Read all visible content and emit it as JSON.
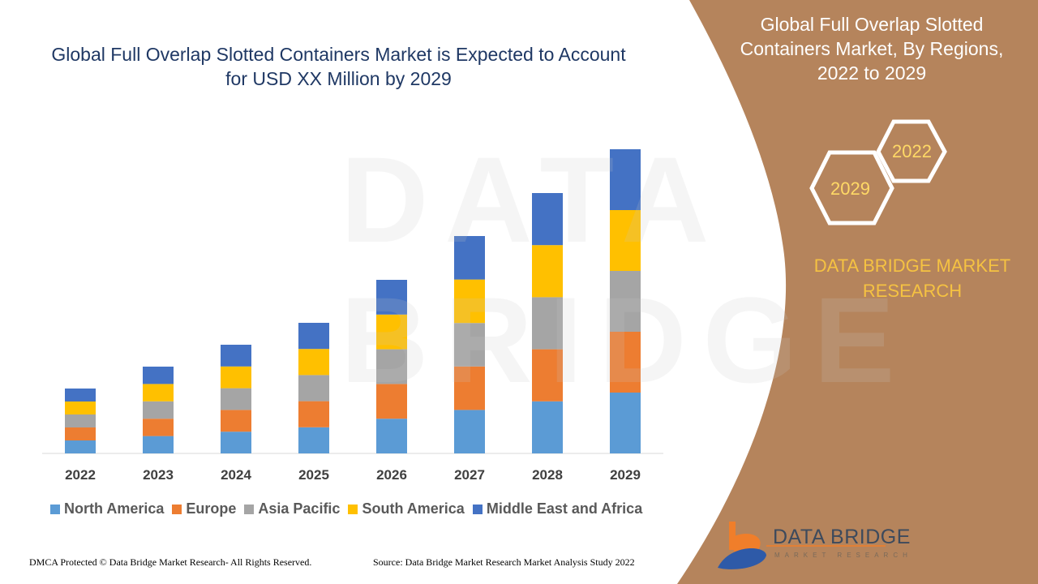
{
  "header": {
    "title": "Global Full Overlap Slotted Containers Market is Expected to Account for USD XX Million by 2029"
  },
  "side_panel": {
    "title": "Global Full Overlap Slotted Containers Market, By Regions, 2022 to 2029",
    "hex_labels": [
      "2022",
      "2029"
    ],
    "brand": "DATA BRIDGE MARKET RESEARCH",
    "background_color": "#B5845C"
  },
  "logo": {
    "name": "DATA BRIDGE",
    "tagline": "MARKET RESEARCH"
  },
  "watermark": "DATA BRIDGE",
  "footer": {
    "left": "DMCA Protected © Data Bridge Market Research- All Rights Reserved.",
    "right": "Source: Data Bridge Market Research Market Analysis Study 2022"
  },
  "chart_data": {
    "type": "bar",
    "stacked": true,
    "title": "Global Full Overlap Slotted Containers Market is Expected to Account for USD XX Million by 2029",
    "xlabel": "",
    "ylabel": "",
    "categories": [
      "2022",
      "2023",
      "2024",
      "2025",
      "2026",
      "2027",
      "2028",
      "2029"
    ],
    "ylim": [
      0,
      400
    ],
    "y_axis_visible": false,
    "grid": false,
    "legend_position": "bottom",
    "series": [
      {
        "name": "North America",
        "color": "#5B9BD5",
        "values": [
          16,
          21.4,
          26.8,
          32.2,
          42.8,
          53.6,
          64.2,
          75
        ]
      },
      {
        "name": "Europe",
        "color": "#ED7D31",
        "values": [
          16,
          21.4,
          26.8,
          32.2,
          42.8,
          53.6,
          64.2,
          75
        ]
      },
      {
        "name": "Asia Pacific",
        "color": "#A5A5A5",
        "values": [
          16,
          21.4,
          26.8,
          32.2,
          42.8,
          53.6,
          64.2,
          75
        ]
      },
      {
        "name": "South America",
        "color": "#FFC000",
        "values": [
          16,
          21.4,
          26.8,
          32.2,
          42.8,
          53.6,
          64.2,
          75
        ]
      },
      {
        "name": "Middle East and Africa",
        "color": "#4472C4",
        "values": [
          16,
          21.4,
          26.8,
          32.2,
          42.8,
          53.6,
          64.2,
          75
        ]
      }
    ]
  }
}
